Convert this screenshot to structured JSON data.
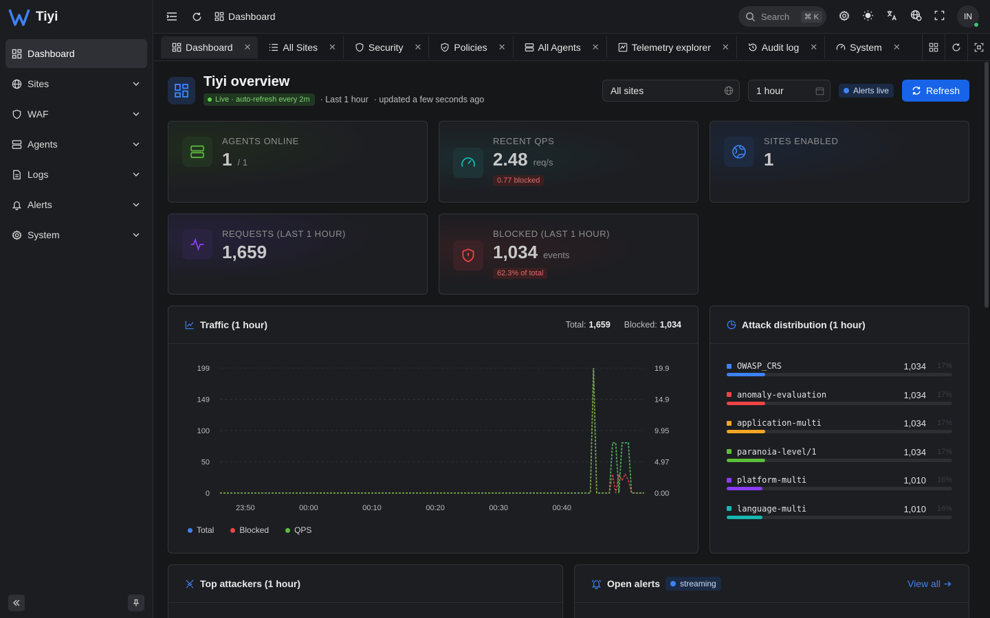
{
  "app": {
    "name": "Tiyi"
  },
  "sidebar": {
    "items": [
      {
        "label": "Dashboard",
        "icon": "dashboard-icon",
        "active": true
      },
      {
        "label": "Sites",
        "icon": "globe-icon"
      },
      {
        "label": "WAF",
        "icon": "shield-icon"
      },
      {
        "label": "Agents",
        "icon": "server-icon"
      },
      {
        "label": "Logs",
        "icon": "file-icon"
      },
      {
        "label": "Alerts",
        "icon": "bell-icon"
      },
      {
        "label": "System",
        "icon": "gear-icon"
      }
    ]
  },
  "header": {
    "breadcrumb": "Dashboard",
    "search_label": "Search",
    "search_shortcut": "⌘ K",
    "avatar_initials": "IN"
  },
  "tabs": [
    {
      "label": "Dashboard",
      "icon": "dashboard-icon",
      "active": true
    },
    {
      "label": "All Sites",
      "icon": "list-icon"
    },
    {
      "label": "Security",
      "icon": "shield-icon"
    },
    {
      "label": "Policies",
      "icon": "shield-check-icon"
    },
    {
      "label": "All Agents",
      "icon": "server-icon"
    },
    {
      "label": "Telemetry explorer",
      "icon": "chart-icon"
    },
    {
      "label": "Audit log",
      "icon": "history-icon"
    },
    {
      "label": "System",
      "icon": "gauge-icon"
    }
  ],
  "overview": {
    "title": "Tiyi overview",
    "live_badge": "Live · auto-refresh every 2m",
    "range_text": "· Last 1 hour",
    "updated_text": "· updated a few seconds ago",
    "site_select": "All sites",
    "time_select": "1 hour",
    "alerts_live": "Alerts live",
    "refresh_label": "Refresh"
  },
  "stats": {
    "agents": {
      "label": "Agents online",
      "value": "1",
      "unit": "/ 1"
    },
    "qps": {
      "label": "Recent QPS",
      "value": "2.48",
      "unit": "req/s",
      "badge": "0.77 blocked"
    },
    "sites": {
      "label": "Sites enabled",
      "value": "1"
    },
    "requests": {
      "label": "Requests (last 1 hour)",
      "value": "1,659"
    },
    "blocked": {
      "label": "Blocked (last 1 hour)",
      "value": "1,034",
      "unit": "events",
      "badge": "62.3% of total"
    }
  },
  "traffic": {
    "title": "Traffic (1 hour)",
    "total_label": "Total:",
    "total_value": "1,659",
    "blocked_label": "Blocked:",
    "blocked_value": "1,034",
    "legend": [
      "Total",
      "Blocked",
      "QPS"
    ]
  },
  "chart_data": {
    "type": "line",
    "title": "Traffic (1 hour)",
    "y_left_ticks": [
      "199",
      "149",
      "100",
      "50",
      "0"
    ],
    "y_right_ticks": [
      "19.9",
      "14.9",
      "9.95",
      "4.97",
      "0.00"
    ],
    "x_ticks": [
      "23:50",
      "00:00",
      "00:10",
      "00:20",
      "00:30",
      "00:40"
    ],
    "ylim_left": [
      0,
      199
    ],
    "ylim_right": [
      0,
      19.9
    ],
    "x_minutes": [
      0,
      54,
      54.5,
      55,
      55.5,
      56,
      57.5,
      58,
      58.5,
      59,
      59.5,
      60,
      60.5,
      61,
      61.5,
      62,
      62.5,
      63
    ],
    "series": [
      {
        "name": "Total",
        "color": "#3c83f6",
        "axis": "left",
        "values": [
          0,
          0,
          0,
          199,
          0,
          0,
          0,
          80,
          80,
          0,
          80,
          80,
          80,
          0,
          0,
          0,
          0,
          0
        ]
      },
      {
        "name": "Blocked",
        "color": "#ef4444",
        "axis": "left",
        "values": [
          0,
          0,
          0,
          199,
          0,
          0,
          0,
          30,
          0,
          30,
          20,
          30,
          20,
          0,
          0,
          0,
          0,
          0
        ]
      },
      {
        "name": "QPS",
        "color": "#5bbf3a",
        "axis": "right",
        "values": [
          0,
          0,
          0,
          19.9,
          0,
          0,
          0,
          8,
          8,
          0,
          8,
          8,
          8,
          0,
          0,
          0,
          0,
          0
        ]
      }
    ],
    "grid": true,
    "legend": "bottom-left"
  },
  "attacks": {
    "title": "Attack distribution (1 hour)",
    "items": [
      {
        "name": "OWASP_CRS",
        "value": "1,034",
        "pct": "17%",
        "frac": 0.17,
        "color": "#3c83f6"
      },
      {
        "name": "anomaly-evaluation",
        "value": "1,034",
        "pct": "17%",
        "frac": 0.17,
        "color": "#ef4444"
      },
      {
        "name": "application-multi",
        "value": "1,034",
        "pct": "17%",
        "frac": 0.17,
        "color": "#f5a623"
      },
      {
        "name": "paranoia-level/1",
        "value": "1,034",
        "pct": "17%",
        "frac": 0.17,
        "color": "#5bbf3a"
      },
      {
        "name": "platform-multi",
        "value": "1,010",
        "pct": "16%",
        "frac": 0.16,
        "color": "#8b3cf6"
      },
      {
        "name": "language-multi",
        "value": "1,010",
        "pct": "16%",
        "frac": 0.16,
        "color": "#15b8b0"
      }
    ]
  },
  "attackers": {
    "title": "Top attackers (1 hour)"
  },
  "alerts": {
    "title": "Open alerts",
    "badge": "streaming",
    "view_all": "View all"
  }
}
